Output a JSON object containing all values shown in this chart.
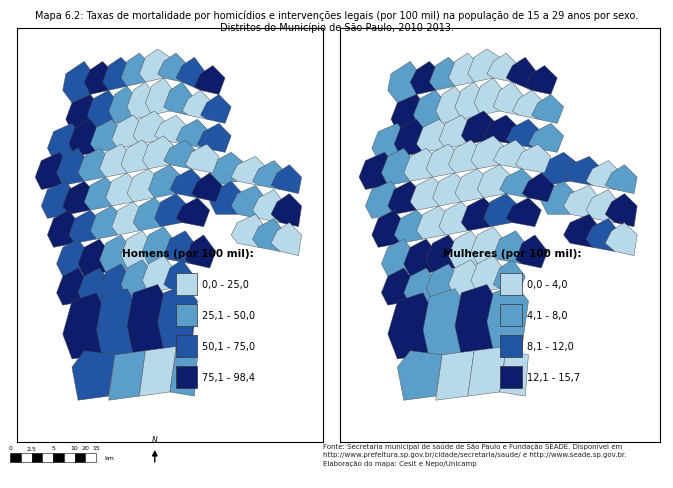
{
  "title_line1": "Mapa 6.2: Taxas de mortalidade por homicídios e intervenções legais (por 100 mil) na população de 15 a 29 anos por sexo.",
  "title_line2": "Distritos do Município de São Paulo, 2010-2013.",
  "source_text": "Fonte: Secretaria municipal de saúde de São Paulo e Fundação SEADE. Disponível em\nhttp://www.prefeitura.sp.gov.br/cidade/secretaria/saude/ e http://www.seade.sp.gov.br.\nElaboração do mapa: Cesit e Nepo/Unicamp",
  "legend_men_title": "Homens (por 100 mil):",
  "legend_men_labels": [
    "0,0 - 25,0",
    "25,1 - 50,0",
    "50,1 - 75,0",
    "75,1 - 98,4"
  ],
  "legend_men_colors": [
    "#b8d9ea",
    "#5b9ec9",
    "#2255a4",
    "#0d1d6b"
  ],
  "legend_women_title": "Mulheres (por 100 mil):",
  "legend_women_labels": [
    "0,0 - 4,0",
    "4,1 - 8,0",
    "8,1 - 12,0",
    "12,1 - 15,7"
  ],
  "legend_women_colors": [
    "#b8d9ea",
    "#5b9ec9",
    "#2255a4",
    "#0d1d6b"
  ],
  "background_color": "#ffffff",
  "panel_bg": "#ffffff",
  "scale_bar_labels": [
    "0",
    "2,5",
    "5",
    "10",
    "15",
    "20"
  ],
  "scale_bar_unit": "km",
  "title_fontsize": 7.0,
  "legend_title_fontsize": 7.5,
  "legend_label_fontsize": 7.0,
  "source_fontsize": 5.0
}
